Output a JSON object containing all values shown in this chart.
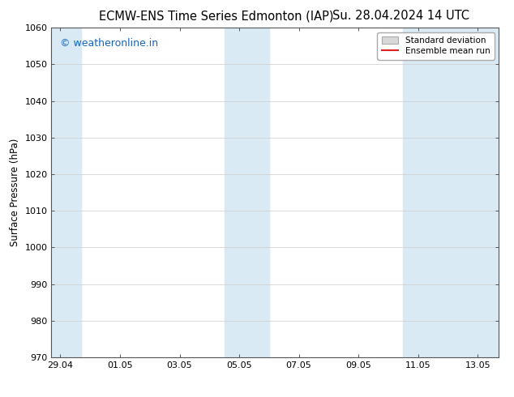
{
  "title_left": "ECMW-ENS Time Series Edmonton (IAP)",
  "title_right": "Su. 28.04.2024 14 UTC",
  "ylabel": "Surface Pressure (hPa)",
  "ylim": [
    970,
    1060
  ],
  "yticks": [
    970,
    980,
    990,
    1000,
    1010,
    1020,
    1030,
    1040,
    1050,
    1060
  ],
  "xlim": [
    -0.3,
    14.7
  ],
  "xtick_labels": [
    "29.04",
    "01.05",
    "03.05",
    "05.05",
    "07.05",
    "09.05",
    "11.05",
    "13.05"
  ],
  "xtick_positions": [
    0,
    2,
    4,
    6,
    8,
    10,
    12,
    14
  ],
  "shaded_bands": [
    {
      "x_start": -0.3,
      "x_end": 0.7,
      "color": "#daeaf5"
    },
    {
      "x_start": 5.5,
      "x_end": 7.0,
      "color": "#daeaf5"
    },
    {
      "x_start": 11.5,
      "x_end": 14.7,
      "color": "#daeaf5"
    }
  ],
  "watermark_text": "© weatheronline.in",
  "watermark_color": "#1565c0",
  "watermark_fontsize": 9,
  "legend_std_label": "Standard deviation",
  "legend_mean_label": "Ensemble mean run",
  "legend_std_color": "#d8d8d8",
  "legend_std_edge": "#aaaaaa",
  "legend_mean_color": "#dd2222",
  "background_color": "#ffffff",
  "plot_bg_color": "#ffffff",
  "grid_color": "#cccccc",
  "title_fontsize": 10.5,
  "tick_fontsize": 8,
  "ylabel_fontsize": 8.5,
  "legend_fontsize": 7.5
}
